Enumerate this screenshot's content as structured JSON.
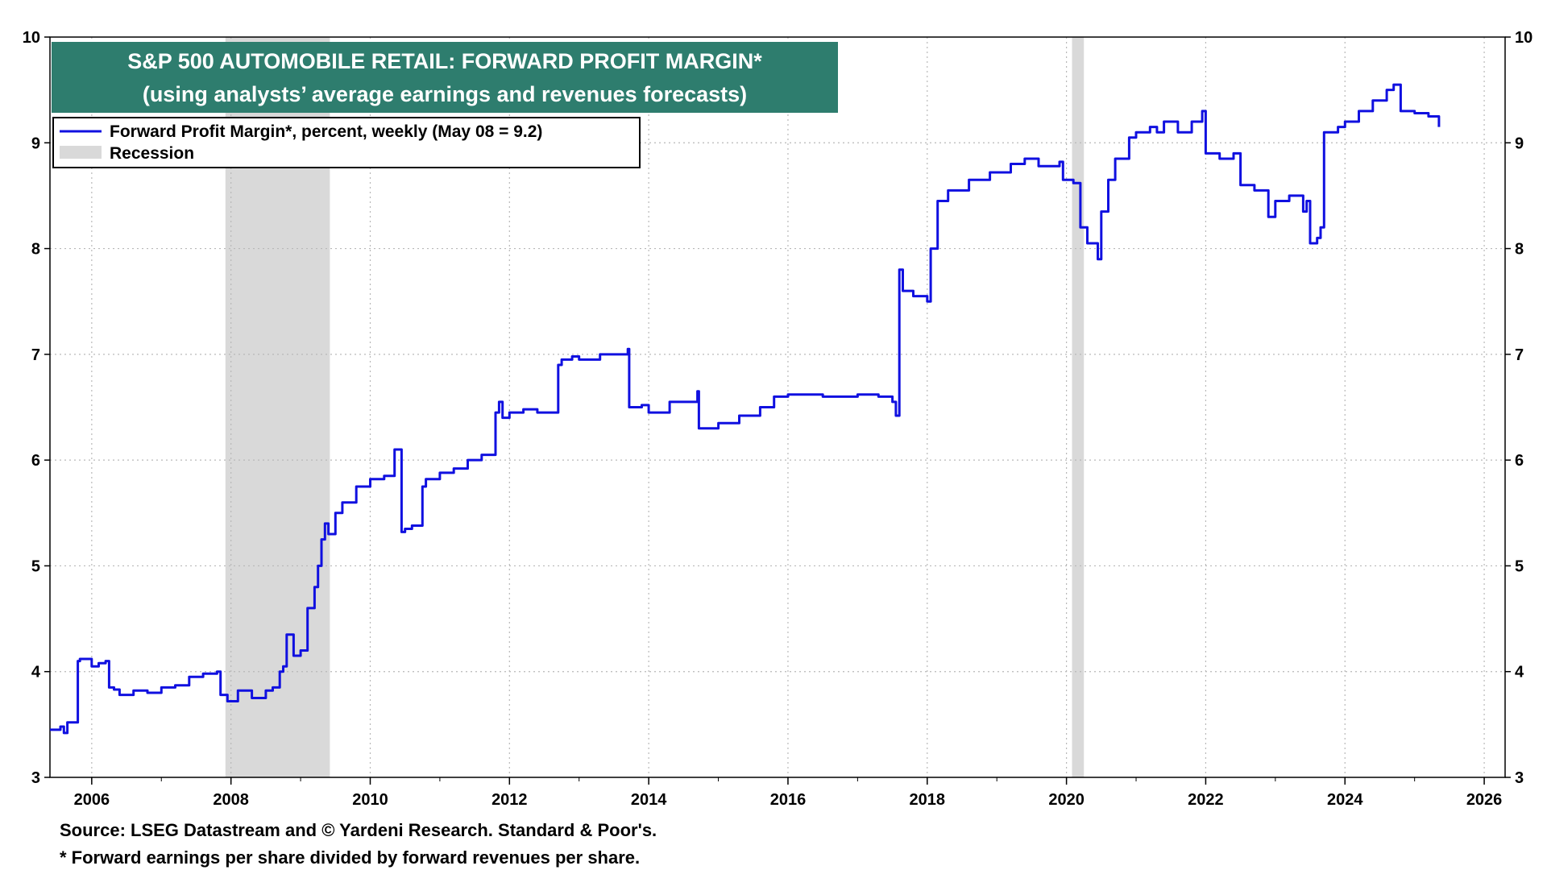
{
  "chart_data": {
    "type": "line",
    "title": "S&P 500 AUTOMOBILE RETAIL: FORWARD PROFIT MARGIN*",
    "subtitle": "(using analysts’ average earnings and revenues forecasts)",
    "xlim": [
      2005.4,
      2026.3
    ],
    "ylim": [
      3,
      10
    ],
    "x_ticks": [
      2006,
      2008,
      2010,
      2012,
      2014,
      2016,
      2018,
      2020,
      2022,
      2024,
      2026
    ],
    "x_tick_labels": [
      "2006",
      "2008",
      "2010",
      "2012",
      "2014",
      "2016",
      "2018",
      "2020",
      "2022",
      "2024",
      "2026"
    ],
    "y_ticks": [
      3,
      4,
      5,
      6,
      7,
      8,
      9,
      10
    ],
    "y_tick_labels": [
      "3",
      "4",
      "5",
      "6",
      "7",
      "8",
      "9",
      "10"
    ],
    "grid": true,
    "legend_position": "top-left",
    "recessions": [
      [
        2007.92,
        2009.42
      ],
      [
        2020.08,
        2020.25
      ]
    ],
    "colors": {
      "line": "#1010e0",
      "recession": "#d9d9d9",
      "title_bg": "#2e7d6e"
    },
    "series": [
      {
        "name": "Forward Profit Margin*, percent, weekly (May 08 = 9.2)",
        "x": [
          2005.4,
          2005.55,
          2005.6,
          2005.65,
          2005.75,
          2005.8,
          2005.83,
          2006.0,
          2006.1,
          2006.2,
          2006.25,
          2006.32,
          2006.4,
          2006.6,
          2006.8,
          2007.0,
          2007.2,
          2007.4,
          2007.6,
          2007.8,
          2007.85,
          2007.95,
          2008.1,
          2008.3,
          2008.5,
          2008.6,
          2008.7,
          2008.75,
          2008.8,
          2008.9,
          2009.0,
          2009.1,
          2009.2,
          2009.25,
          2009.3,
          2009.35,
          2009.4,
          2009.5,
          2009.6,
          2009.8,
          2010.0,
          2010.2,
          2010.35,
          2010.45,
          2010.5,
          2010.6,
          2010.75,
          2010.8,
          2011.0,
          2011.2,
          2011.4,
          2011.6,
          2011.8,
          2011.85,
          2011.9,
          2012.0,
          2012.2,
          2012.4,
          2012.7,
          2012.75,
          2012.9,
          2013.0,
          2013.3,
          2013.7,
          2013.72,
          2013.9,
          2014.0,
          2014.3,
          2014.7,
          2014.72,
          2015.0,
          2015.3,
          2015.6,
          2015.8,
          2016.0,
          2016.5,
          2017.0,
          2017.3,
          2017.5,
          2017.55,
          2017.6,
          2017.65,
          2017.8,
          2018.0,
          2018.05,
          2018.15,
          2018.3,
          2018.6,
          2018.9,
          2019.2,
          2019.4,
          2019.6,
          2019.9,
          2019.95,
          2020.1,
          2020.2,
          2020.3,
          2020.45,
          2020.5,
          2020.6,
          2020.7,
          2020.9,
          2021.0,
          2021.2,
          2021.3,
          2021.4,
          2021.6,
          2021.8,
          2021.95,
          2022.0,
          2022.2,
          2022.4,
          2022.5,
          2022.7,
          2022.9,
          2023.0,
          2023.2,
          2023.4,
          2023.45,
          2023.5,
          2023.6,
          2023.65,
          2023.7,
          2023.9,
          2024.0,
          2024.2,
          2024.4,
          2024.6,
          2024.7,
          2024.8,
          2025.0,
          2025.2,
          2025.35
        ],
        "values": [
          3.45,
          3.48,
          3.42,
          3.52,
          3.52,
          4.1,
          4.12,
          4.05,
          4.08,
          4.1,
          3.85,
          3.83,
          3.78,
          3.82,
          3.8,
          3.85,
          3.87,
          3.95,
          3.98,
          4.0,
          3.78,
          3.72,
          3.82,
          3.75,
          3.82,
          3.85,
          4.0,
          4.05,
          4.35,
          4.15,
          4.2,
          4.6,
          4.8,
          5.0,
          5.25,
          5.4,
          5.3,
          5.5,
          5.6,
          5.75,
          5.82,
          5.85,
          6.1,
          5.32,
          5.35,
          5.38,
          5.75,
          5.82,
          5.88,
          5.92,
          6.0,
          6.05,
          6.45,
          6.55,
          6.4,
          6.45,
          6.48,
          6.45,
          6.9,
          6.95,
          6.98,
          6.95,
          7.0,
          7.05,
          6.5,
          6.52,
          6.45,
          6.55,
          6.65,
          6.3,
          6.35,
          6.42,
          6.5,
          6.6,
          6.62,
          6.6,
          6.62,
          6.6,
          6.55,
          6.42,
          7.8,
          7.6,
          7.55,
          7.5,
          8.0,
          8.45,
          8.55,
          8.65,
          8.72,
          8.8,
          8.85,
          8.78,
          8.82,
          8.65,
          8.62,
          8.2,
          8.05,
          7.9,
          8.35,
          8.65,
          8.85,
          9.05,
          9.1,
          9.15,
          9.1,
          9.2,
          9.1,
          9.2,
          9.3,
          8.9,
          8.85,
          8.9,
          8.6,
          8.55,
          8.3,
          8.45,
          8.5,
          8.35,
          8.45,
          8.05,
          8.1,
          8.2,
          9.1,
          9.15,
          9.2,
          9.3,
          9.4,
          9.5,
          9.55,
          9.3,
          9.28,
          9.25,
          9.15
        ]
      },
      {
        "name": "Recession"
      }
    ],
    "footer": {
      "source": "Source: LSEG Datastream and © Yardeni Research. Standard & Poor's.",
      "note": "* Forward earnings per share divided by forward revenues per share."
    }
  }
}
